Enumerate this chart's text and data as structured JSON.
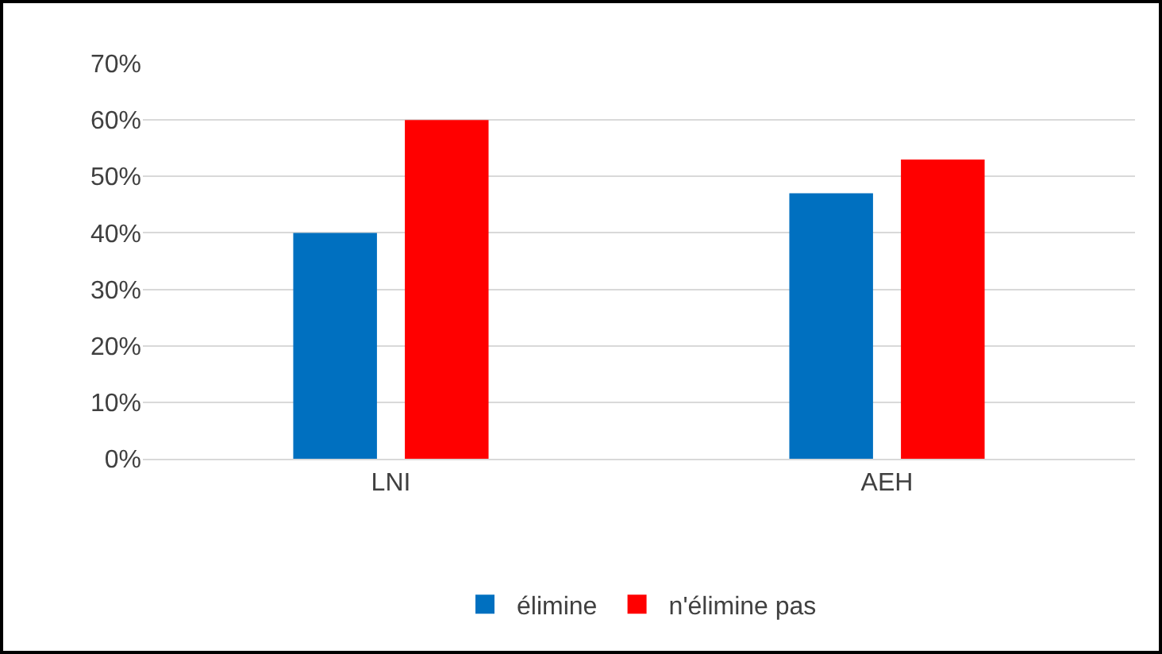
{
  "chart_data": {
    "type": "bar",
    "categories": [
      "LNI",
      "AEH"
    ],
    "series": [
      {
        "name": "élimine",
        "color": "#0070c0",
        "values": [
          40,
          47
        ]
      },
      {
        "name": "n'élimine pas",
        "color": "#ff0000",
        "values": [
          60,
          53
        ]
      }
    ],
    "ylim": [
      0,
      70
    ],
    "yticks": [
      {
        "value": 0,
        "label": "0%"
      },
      {
        "value": 10,
        "label": "10%"
      },
      {
        "value": 20,
        "label": "20%"
      },
      {
        "value": 30,
        "label": "30%"
      },
      {
        "value": 40,
        "label": "40%"
      },
      {
        "value": 50,
        "label": "50%"
      },
      {
        "value": 60,
        "label": "60%"
      },
      {
        "value": 70,
        "label": "70%"
      }
    ],
    "grid": "y",
    "legend": "bottom"
  }
}
